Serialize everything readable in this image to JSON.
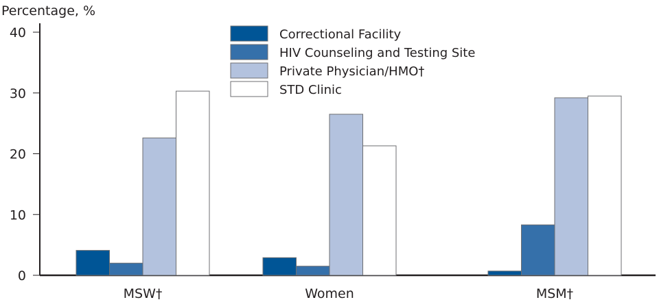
{
  "chart_data": {
    "type": "bar",
    "ylabel": "Percentage, %",
    "ylim": [
      0,
      40
    ],
    "yticks": [
      "0",
      "10",
      "20",
      "30",
      "40"
    ],
    "categories": [
      "MSW†",
      "Women",
      "MSM†"
    ],
    "series": [
      {
        "name": "Correctional Facility",
        "color": "#005596",
        "values": [
          4.1,
          2.9,
          0.7
        ]
      },
      {
        "name": "HIV Counseling and Testing Site",
        "color": "#3570aa",
        "values": [
          2.0,
          1.5,
          8.3
        ]
      },
      {
        "name": "Private Physician/HMO†",
        "color": "#b3c2de",
        "values": [
          22.6,
          26.5,
          29.2
        ]
      },
      {
        "name": "STD Clinic",
        "color": "#ffffff",
        "values": [
          30.3,
          21.3,
          29.5
        ]
      }
    ],
    "legend_position": "top-center",
    "grid": false
  }
}
